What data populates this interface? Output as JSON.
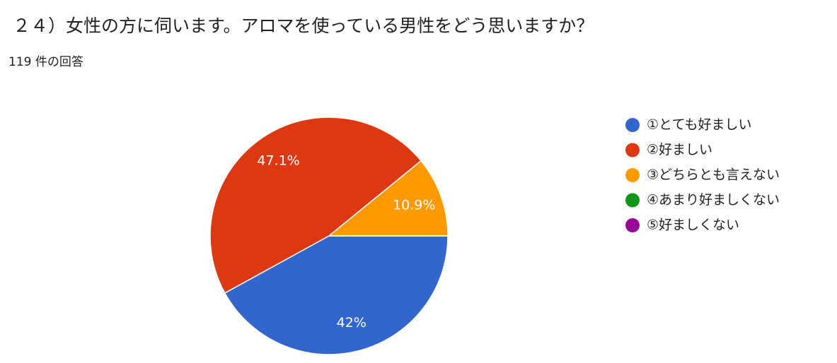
{
  "chart_data": {
    "type": "pie",
    "title": "２４）女性の方に伺います。アロマを使っている男性をどう思いますか？",
    "subtitle": "119 件の回答",
    "categories": [
      "①とても好ましい",
      "②好ましい",
      "③どちらとも言えない",
      "④あまり好ましくない",
      "⑤好ましくない"
    ],
    "values": [
      42,
      47.1,
      10.9,
      0,
      0
    ],
    "value_labels": [
      "42%",
      "47.1%",
      "10.9%",
      null,
      null
    ],
    "colors": [
      "#3366cc",
      "#dc3912",
      "#ff9900",
      "#109618",
      "#990099"
    ],
    "legend": "right"
  }
}
